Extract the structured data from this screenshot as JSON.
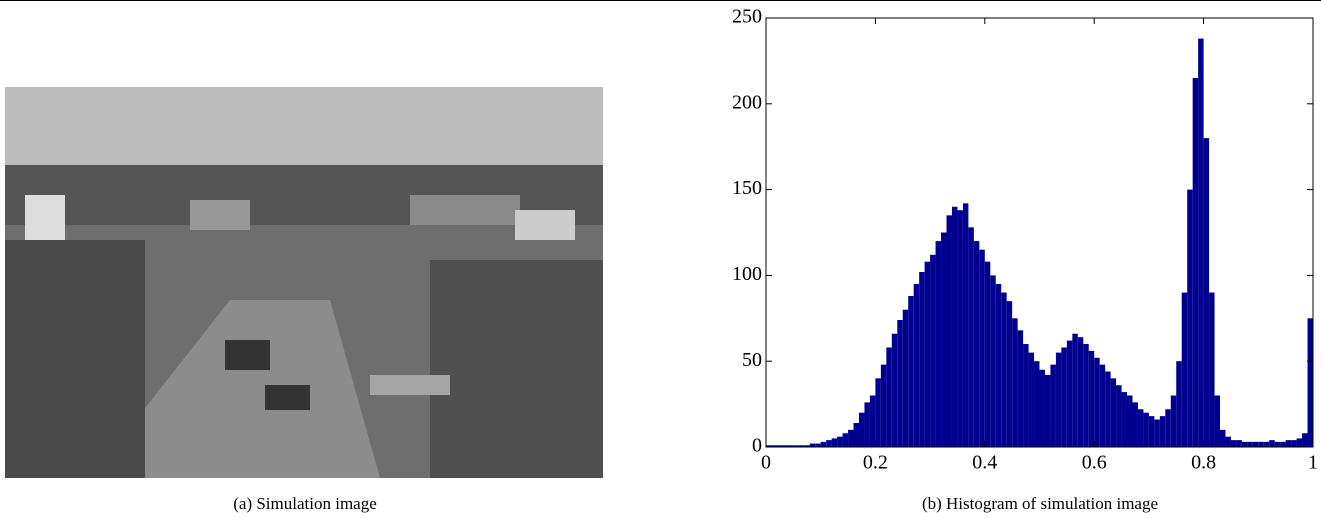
{
  "image_caption": "(a) Simulation image",
  "chart_data": {
    "type": "histogram",
    "caption": "(b) Histogram of simulation image",
    "color": "#000090",
    "bins": [
      0,
      0.01,
      0.02,
      0.03,
      0.04,
      0.05,
      0.06,
      0.07,
      0.08,
      0.09,
      0.1,
      0.11,
      0.12,
      0.13,
      0.14,
      0.15,
      0.16,
      0.17,
      0.18,
      0.19,
      0.2,
      0.21,
      0.22,
      0.23,
      0.24,
      0.25,
      0.26,
      0.27,
      0.28,
      0.29,
      0.3,
      0.31,
      0.32,
      0.33,
      0.34,
      0.35,
      0.36,
      0.37,
      0.38,
      0.39,
      0.4,
      0.41,
      0.42,
      0.43,
      0.44,
      0.45,
      0.46,
      0.47,
      0.48,
      0.49,
      0.5,
      0.51,
      0.52,
      0.53,
      0.54,
      0.55,
      0.56,
      0.57,
      0.58,
      0.59,
      0.6,
      0.61,
      0.62,
      0.63,
      0.64,
      0.65,
      0.66,
      0.67,
      0.68,
      0.69,
      0.7,
      0.71,
      0.72,
      0.73,
      0.74,
      0.75,
      0.76,
      0.77,
      0.78,
      0.79,
      0.8,
      0.81,
      0.82,
      0.83,
      0.84,
      0.85,
      0.86,
      0.87,
      0.88,
      0.89,
      0.9,
      0.91,
      0.92,
      0.93,
      0.94,
      0.95,
      0.96,
      0.97,
      0.98,
      0.99,
      1
    ],
    "values": [
      1,
      1,
      1,
      1,
      1,
      1,
      1,
      1,
      2,
      2,
      3,
      4,
      5,
      6,
      8,
      10,
      14,
      20,
      26,
      30,
      40,
      48,
      58,
      66,
      74,
      80,
      88,
      95,
      102,
      108,
      112,
      120,
      125,
      135,
      140,
      138,
      142,
      128,
      120,
      115,
      108,
      100,
      95,
      90,
      85,
      75,
      68,
      60,
      55,
      50,
      45,
      42,
      48,
      55,
      58,
      62,
      66,
      64,
      60,
      56,
      52,
      48,
      44,
      40,
      36,
      32,
      30,
      26,
      22,
      20,
      18,
      16,
      18,
      22,
      30,
      50,
      90,
      150,
      215,
      238,
      180,
      90,
      30,
      10,
      6,
      4,
      4,
      3,
      3,
      3,
      3,
      3,
      4,
      3,
      3,
      4,
      4,
      5,
      8,
      75
    ],
    "xlim": [
      0,
      1
    ],
    "ylim": [
      0,
      250
    ],
    "xticks": [
      0,
      0.2,
      0.4,
      0.6,
      0.8,
      1
    ],
    "yticks": [
      0,
      50,
      100,
      150,
      200,
      250
    ]
  }
}
